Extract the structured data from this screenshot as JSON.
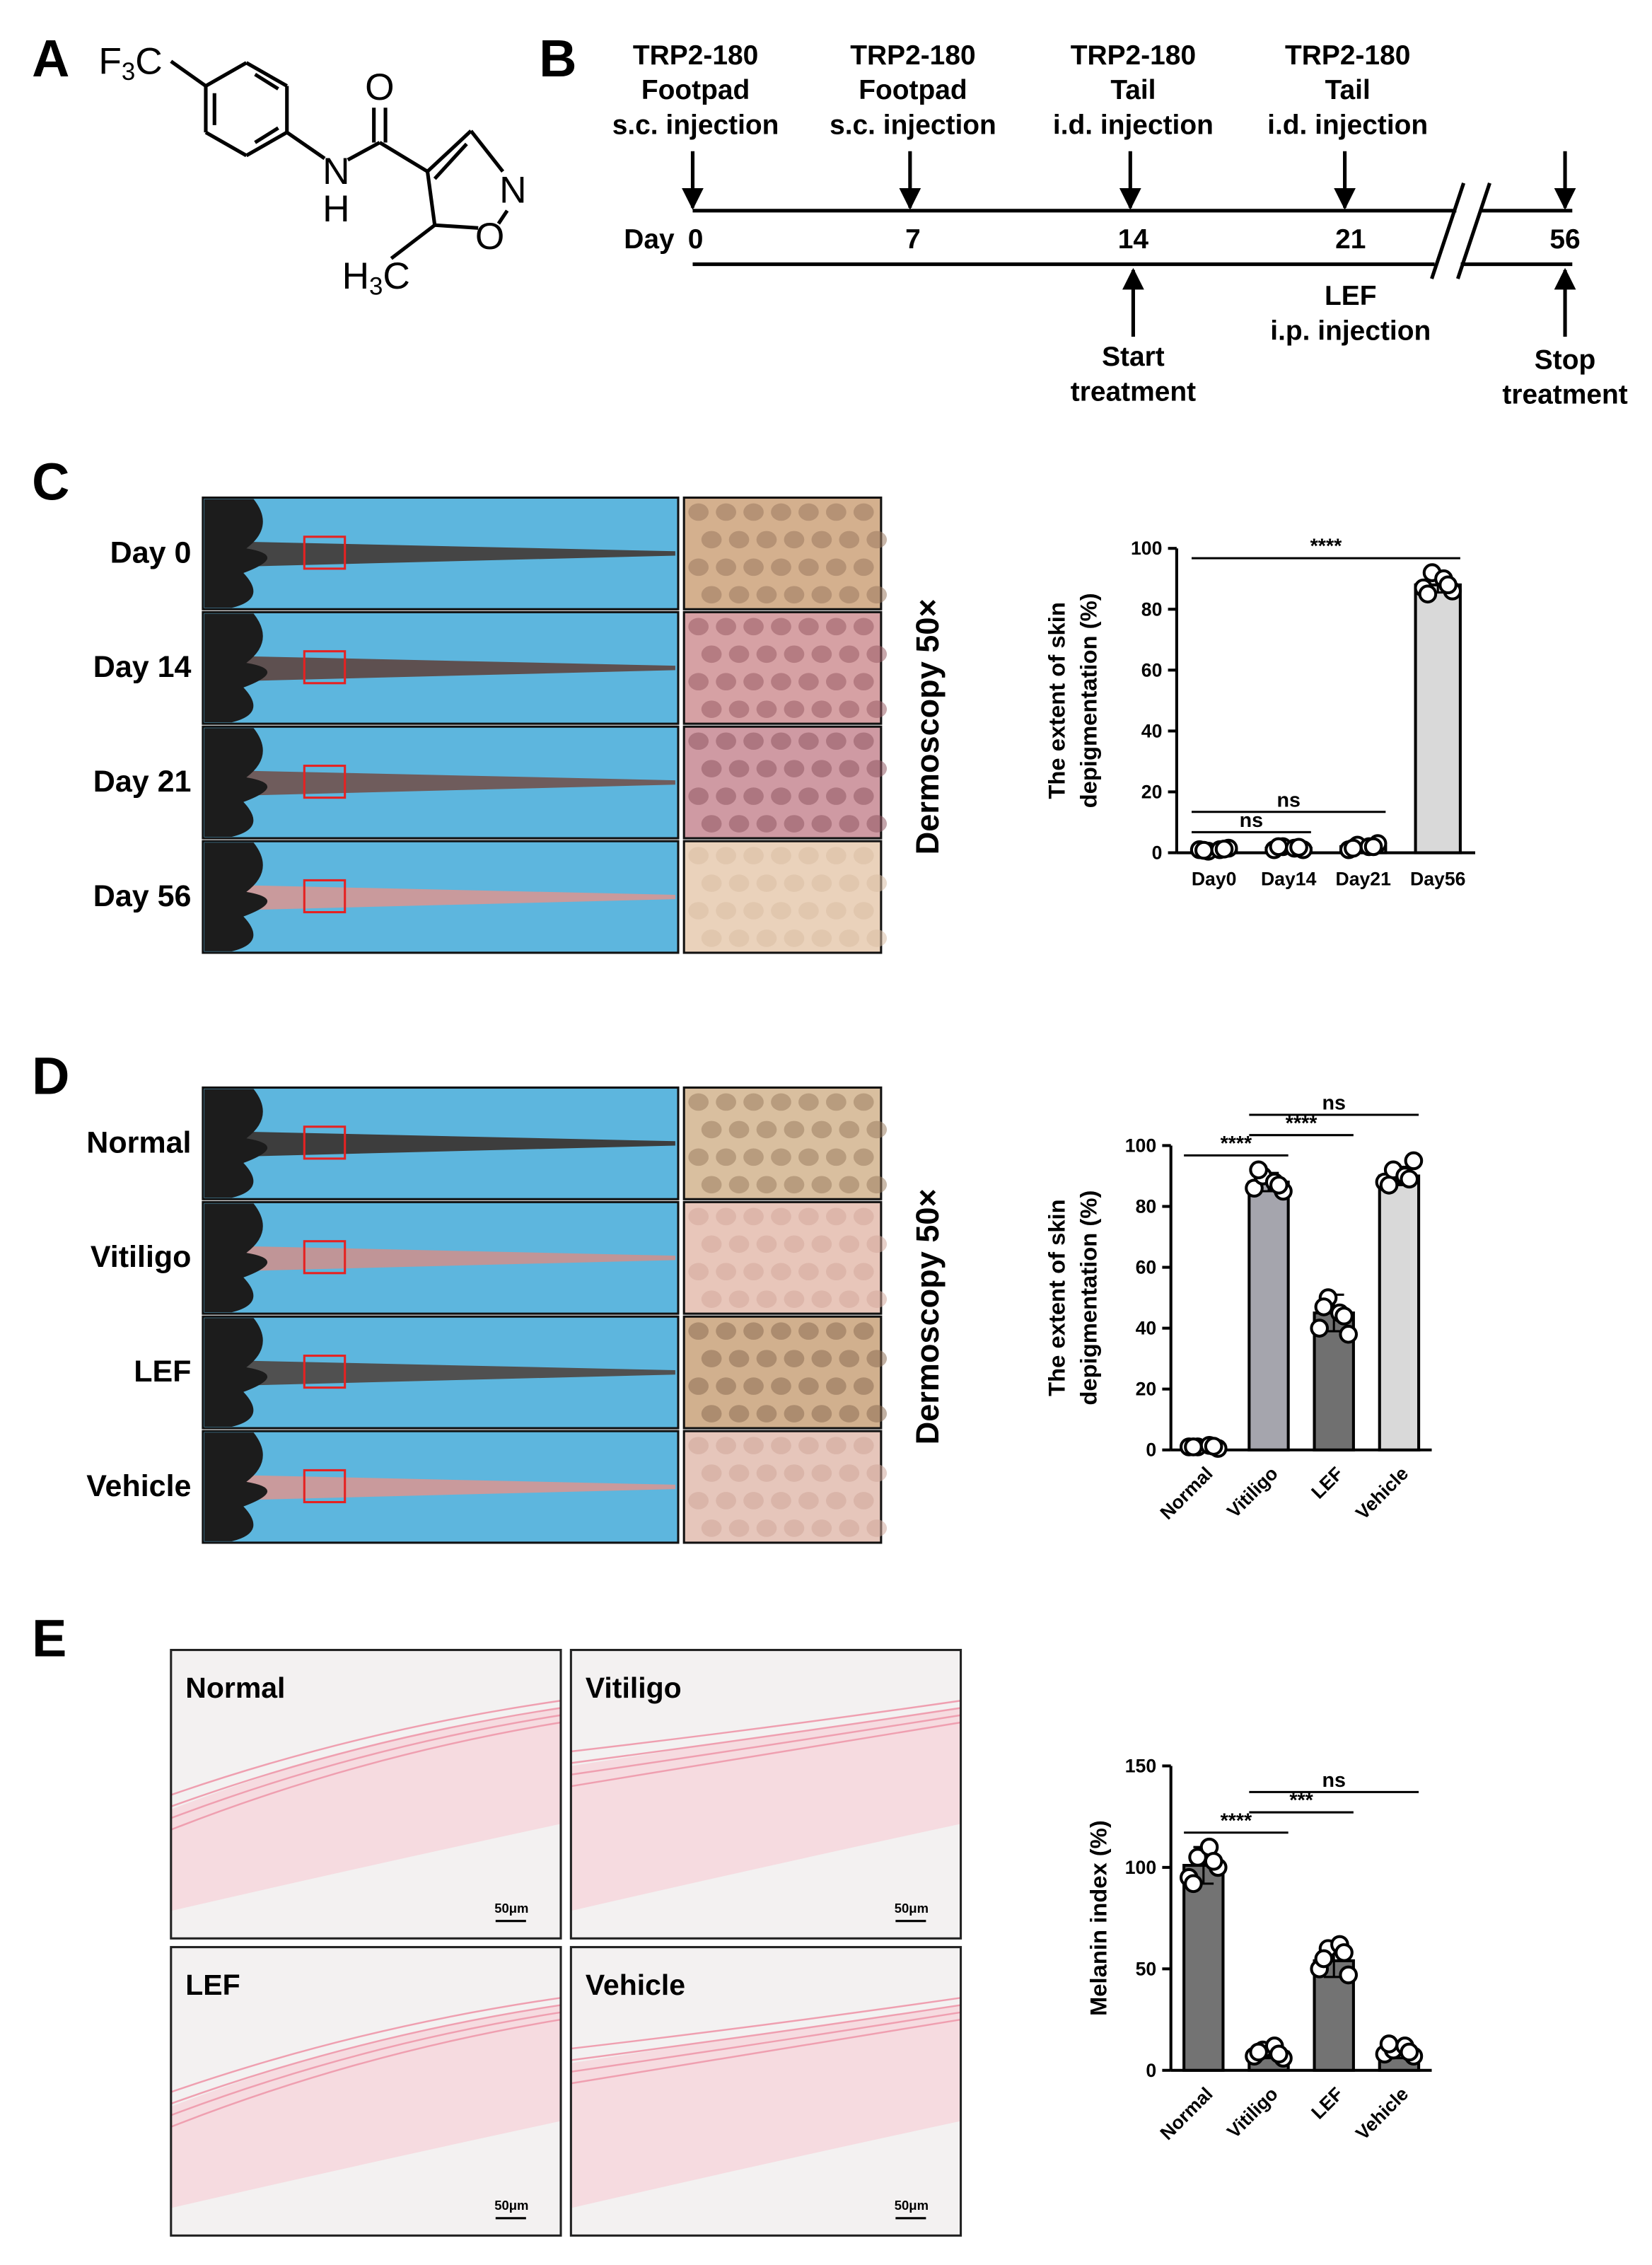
{
  "panel_labels": [
    "A",
    "B",
    "C",
    "D",
    "E"
  ],
  "structure": {
    "cf3": [
      "F",
      "3",
      "C"
    ],
    "carbonyl_o": "O",
    "amide": [
      "N",
      "H"
    ],
    "ring_n": "N",
    "ring_o": "O",
    "ch3": [
      "H",
      "3",
      "C"
    ]
  },
  "timeline": {
    "injections": [
      [
        "TRP2-180",
        "Footpad",
        "s.c. injection"
      ],
      [
        "TRP2-180",
        "Footpad",
        "s.c. injection"
      ],
      [
        "TRP2-180",
        "Tail",
        "i.d. injection"
      ],
      [
        "TRP2-180",
        "Tail",
        "i.d. injection"
      ]
    ],
    "day_word": "Day",
    "days": [
      "0",
      "7",
      "14",
      "21",
      "56"
    ],
    "start": [
      "Start",
      "treatment"
    ],
    "drug": [
      "LEF",
      "i.p. injection"
    ],
    "stop": [
      "Stop",
      "treatment"
    ]
  },
  "panel_c": {
    "rows": [
      "Day 0",
      "Day 14",
      "Day 21",
      "Day 56"
    ],
    "dermoscopy": "Dermoscopy 50×"
  },
  "panel_d": {
    "rows": [
      "Normal",
      "Vitiligo",
      "LEF",
      "Vehicle"
    ],
    "dermoscopy": "Dermoscopy 50×"
  },
  "panel_e": {
    "images": [
      "Normal",
      "Vitiligo",
      "LEF",
      "Vehicle"
    ],
    "scale_bars": [
      "50μm",
      "50μm",
      "50μm",
      "50μm"
    ]
  },
  "chart_data": [
    {
      "type": "bar",
      "y_label": [
        "The extent of skin",
        "depigmentation (%)"
      ],
      "categories": [
        "Day0",
        "Day14",
        "Day21",
        "Day56"
      ],
      "values": [
        1,
        1.5,
        2,
        88
      ],
      "errors": [
        0.5,
        0.5,
        0.8,
        2.5
      ],
      "points": [
        [
          1,
          0.5,
          1,
          1.5,
          0.8,
          1.2
        ],
        [
          1,
          2,
          1.5,
          1,
          2,
          1.8
        ],
        [
          1,
          2.5,
          2,
          3,
          1.5,
          2
        ],
        [
          87,
          92,
          90,
          86,
          85,
          88
        ]
      ],
      "colors": [
        "#ffffff",
        "#ffffff",
        "#ffffff",
        "#d9d9d9"
      ],
      "ylim": [
        0,
        100
      ],
      "yticks": [
        0,
        20,
        40,
        60,
        80,
        100
      ],
      "rotate_labels": false,
      "significance": [
        {
          "pair": [
            0,
            1
          ],
          "label": "ns"
        },
        {
          "pair": [
            0,
            2
          ],
          "label": "ns"
        },
        {
          "pair": [
            0,
            3
          ],
          "label": "****"
        }
      ]
    },
    {
      "type": "bar",
      "y_label": [
        "The extent of skin",
        "depigmentation (%)"
      ],
      "categories": [
        "Normal",
        "Vitiligo",
        "LEF",
        "Vehicle"
      ],
      "values": [
        1,
        88,
        45,
        90
      ],
      "errors": [
        0.5,
        3,
        6,
        3
      ],
      "points": [
        [
          1,
          1,
          1.5,
          0.5,
          1,
          1.2
        ],
        [
          86,
          90,
          88,
          85,
          92,
          87
        ],
        [
          40,
          50,
          45,
          38,
          47,
          44
        ],
        [
          88,
          92,
          90,
          95,
          87,
          89
        ]
      ],
      "colors": [
        "#ffffff",
        "#a5a5ad",
        "#707070",
        "#d9d9d9"
      ],
      "ylim": [
        0,
        100
      ],
      "yticks": [
        0,
        20,
        40,
        60,
        80,
        100
      ],
      "rotate_labels": true,
      "significance": [
        {
          "pair": [
            0,
            1
          ],
          "label": "****"
        },
        {
          "pair": [
            1,
            2
          ],
          "label": "****"
        },
        {
          "pair": [
            1,
            3
          ],
          "label": "ns"
        }
      ]
    },
    {
      "type": "bar",
      "y_label": [
        "Melanin index (%)"
      ],
      "categories": [
        "Normal",
        "Vitiligo",
        "LEF",
        "Vehicle"
      ],
      "values": [
        101,
        9,
        54,
        9
      ],
      "errors": [
        9,
        3,
        8,
        3
      ],
      "points": [
        [
          95,
          105,
          110,
          100,
          92,
          103
        ],
        [
          7,
          10,
          12,
          6,
          9,
          8
        ],
        [
          50,
          60,
          62,
          47,
          55,
          58
        ],
        [
          8,
          10,
          12,
          7,
          13,
          9
        ]
      ],
      "colors": [
        "#737373",
        "#737373",
        "#737373",
        "#737373"
      ],
      "ylim": [
        0,
        150
      ],
      "yticks": [
        0,
        50,
        100,
        150
      ],
      "rotate_labels": true,
      "significance": [
        {
          "pair": [
            0,
            1
          ],
          "label": "****"
        },
        {
          "pair": [
            1,
            2
          ],
          "label": "***"
        },
        {
          "pair": [
            1,
            3
          ],
          "label": "ns"
        }
      ]
    }
  ]
}
